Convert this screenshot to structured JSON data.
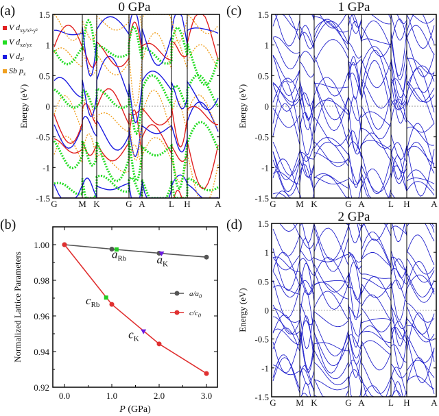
{
  "chart_data": [
    {
      "type": "line",
      "id": "a",
      "panel_label": "(a)",
      "title": "0 GPa",
      "ylabel": "Energy (eV)",
      "ylim": [
        -1.5,
        1.5
      ],
      "yticks": [
        "1.5",
        "1",
        "0.5",
        "0",
        "-0.5",
        "-1",
        "-1.5"
      ],
      "kpoints": [
        "G",
        "M",
        "K",
        "G",
        "A",
        "L",
        "H",
        "A"
      ],
      "fermi_level": 0,
      "legend": [
        {
          "label": "V d",
          "sub": "xy/x²-y²",
          "color": "#e02020"
        },
        {
          "label": "V d",
          "sub": "xz/yz",
          "color": "#22dd22"
        },
        {
          "label": "V d",
          "sub": "z²",
          "color": "#1a1ae0"
        },
        {
          "label": "Sb p",
          "sub": "z",
          "color": "#f0a020"
        }
      ]
    },
    {
      "type": "line",
      "id": "c",
      "panel_label": "(c)",
      "title": "1 GPa",
      "ylabel": "Energy (eV)",
      "ylim": [
        -1.5,
        1.5
      ],
      "yticks": [
        "1.5",
        "1",
        "0.5",
        "0",
        "-0.5",
        "-1",
        "-1.5"
      ],
      "kpoints": [
        "G",
        "M",
        "K",
        "G",
        "A",
        "L",
        "H",
        "A"
      ],
      "fermi_level": 0,
      "color": "#2222cc"
    },
    {
      "type": "line",
      "id": "d",
      "panel_label": "(d)",
      "title": "2 GPa",
      "ylabel": "Energy (eV)",
      "ylim": [
        -1.5,
        1.5
      ],
      "yticks": [
        "1.5",
        "1",
        "0.5",
        "0",
        "-0.5",
        "-1",
        "-1.5"
      ],
      "kpoints": [
        "G",
        "M",
        "K",
        "G",
        "A",
        "L",
        "H",
        "A"
      ],
      "fermi_level": 0,
      "color": "#2222cc"
    },
    {
      "type": "line",
      "id": "b",
      "panel_label": "(b)",
      "xlabel_italic": "P",
      "xlabel": " (GPa)",
      "ylabel": "Normalized Lattice Parameters",
      "xlim": [
        -0.25,
        3.1
      ],
      "ylim": [
        0.92,
        1.01
      ],
      "xticks": [
        0.0,
        1.0,
        2.0,
        3.0
      ],
      "xtick_labels": [
        "0.0",
        "1.0",
        "2.0",
        "3.0"
      ],
      "yticks": [
        0.92,
        0.94,
        0.96,
        0.98,
        1.0
      ],
      "ytick_labels": [
        "0.92",
        "0.94",
        "0.96",
        "0.98",
        "1.00"
      ],
      "legend_position": "center-right",
      "series": [
        {
          "name": "a/a",
          "sub": "0",
          "color": "#555555",
          "x": [
            0,
            1,
            2,
            3
          ],
          "y": [
            1.0,
            0.9975,
            0.9952,
            0.993
          ]
        },
        {
          "name": "c/c",
          "sub": "0",
          "color": "#e03030",
          "x": [
            0,
            1,
            2,
            3
          ],
          "y": [
            1.0,
            0.9665,
            0.9443,
            0.9277
          ]
        }
      ],
      "markers": [
        {
          "label": "a",
          "sub": "Rb",
          "x": 1.1,
          "y": 0.9973,
          "color": "#22cc22",
          "shape": "square",
          "lx": 1.0,
          "ly": 0.9925
        },
        {
          "label": "a",
          "sub": "K",
          "x": 2.05,
          "y": 0.995,
          "color": "#6a1ae0",
          "shape": "triangle",
          "lx": 1.95,
          "ly": 0.9895
        },
        {
          "label": "c",
          "sub": "Rb",
          "x": 0.88,
          "y": 0.9703,
          "color": "#22cc22",
          "shape": "square",
          "lx": 0.45,
          "ly": 0.9665
        },
        {
          "label": "c",
          "sub": "K",
          "x": 1.67,
          "y": 0.9513,
          "color": "#6a1ae0",
          "shape": "triangle",
          "lx": 1.35,
          "ly": 0.9475
        }
      ]
    }
  ]
}
